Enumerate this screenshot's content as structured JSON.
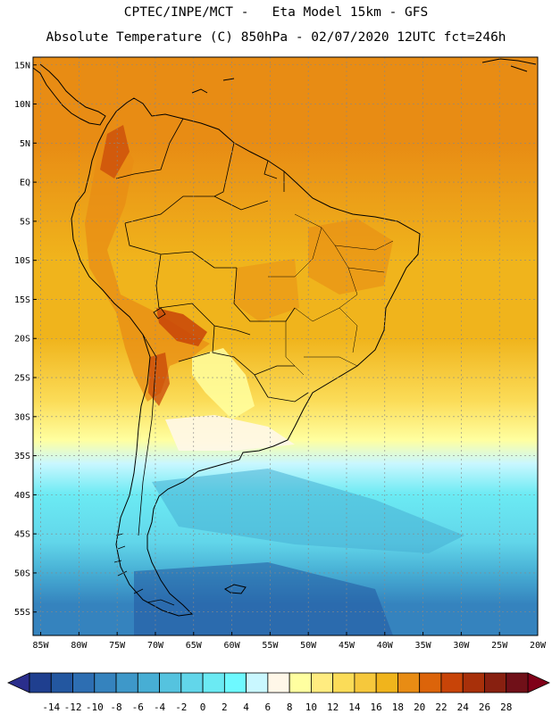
{
  "header": {
    "line1": "CPTEC/INPE/MCT -   Eta Model 15km - GFS",
    "line2": "Absolute Temperature (C) 850hPa - 02/07/2020 12UTC fct=246h"
  },
  "map": {
    "lat_range": [
      -58,
      16
    ],
    "lon_range": [
      -86,
      -20
    ],
    "lat_ticks": [
      {
        "v": 15,
        "label": "15N"
      },
      {
        "v": 10,
        "label": "10N"
      },
      {
        "v": 5,
        "label": "5N"
      },
      {
        "v": 0,
        "label": "EQ"
      },
      {
        "v": -5,
        "label": "5S"
      },
      {
        "v": -10,
        "label": "10S"
      },
      {
        "v": -15,
        "label": "15S"
      },
      {
        "v": -20,
        "label": "20S"
      },
      {
        "v": -25,
        "label": "25S"
      },
      {
        "v": -30,
        "label": "30S"
      },
      {
        "v": -35,
        "label": "35S"
      },
      {
        "v": -40,
        "label": "40S"
      },
      {
        "v": -45,
        "label": "45S"
      },
      {
        "v": -50,
        "label": "50S"
      },
      {
        "v": -55,
        "label": "55S"
      }
    ],
    "lon_ticks": [
      {
        "v": -85,
        "label": "85W"
      },
      {
        "v": -80,
        "label": "80W"
      },
      {
        "v": -75,
        "label": "75W"
      },
      {
        "v": -70,
        "label": "70W"
      },
      {
        "v": -65,
        "label": "65W"
      },
      {
        "v": -60,
        "label": "60W"
      },
      {
        "v": -55,
        "label": "55W"
      },
      {
        "v": -50,
        "label": "50W"
      },
      {
        "v": -45,
        "label": "45W"
      },
      {
        "v": -40,
        "label": "40W"
      },
      {
        "v": -35,
        "label": "35W"
      },
      {
        "v": -30,
        "label": "30W"
      },
      {
        "v": -25,
        "label": "25W"
      },
      {
        "v": -20,
        "label": "20W"
      }
    ],
    "grid": true,
    "bands": [
      {
        "lat": 16,
        "temp": 19
      },
      {
        "lat": 5,
        "temp": 18
      },
      {
        "lat": -10,
        "temp": 17
      },
      {
        "lat": -20,
        "temp": 16
      },
      {
        "lat": -28,
        "temp": 13
      },
      {
        "lat": -33,
        "temp": 9
      },
      {
        "lat": -36,
        "temp": 5
      },
      {
        "lat": -40,
        "temp": 1
      },
      {
        "lat": -46,
        "temp": -2
      },
      {
        "lat": -50,
        "temp": -6
      },
      {
        "lat": -54,
        "temp": -9
      },
      {
        "lat": -58,
        "temp": -10
      }
    ]
  },
  "colorbar": {
    "labels": [
      "-14",
      "-12",
      "-10",
      "-8",
      "-6",
      "-4",
      "-2",
      "0",
      "2",
      "4",
      "6",
      "8",
      "10",
      "12",
      "14",
      "16",
      "18",
      "20",
      "22",
      "24",
      "26",
      "28"
    ],
    "low_color": "#2a2e8c",
    "high_color": "#800018",
    "colors": [
      "#1f3f8f",
      "#2357a0",
      "#2d6eb2",
      "#3583be",
      "#3e98c9",
      "#47aed4",
      "#55c3df",
      "#62d6ea",
      "#6beaf3",
      "#6ef9ff",
      "#c9f7ff",
      "#fff7e8",
      "#ffffa0",
      "#ffec80",
      "#fbdc58",
      "#f6c83c",
      "#f0b41c",
      "#e88c14",
      "#dc640a",
      "#c84408",
      "#a8300a",
      "#882010",
      "#701018"
    ]
  }
}
